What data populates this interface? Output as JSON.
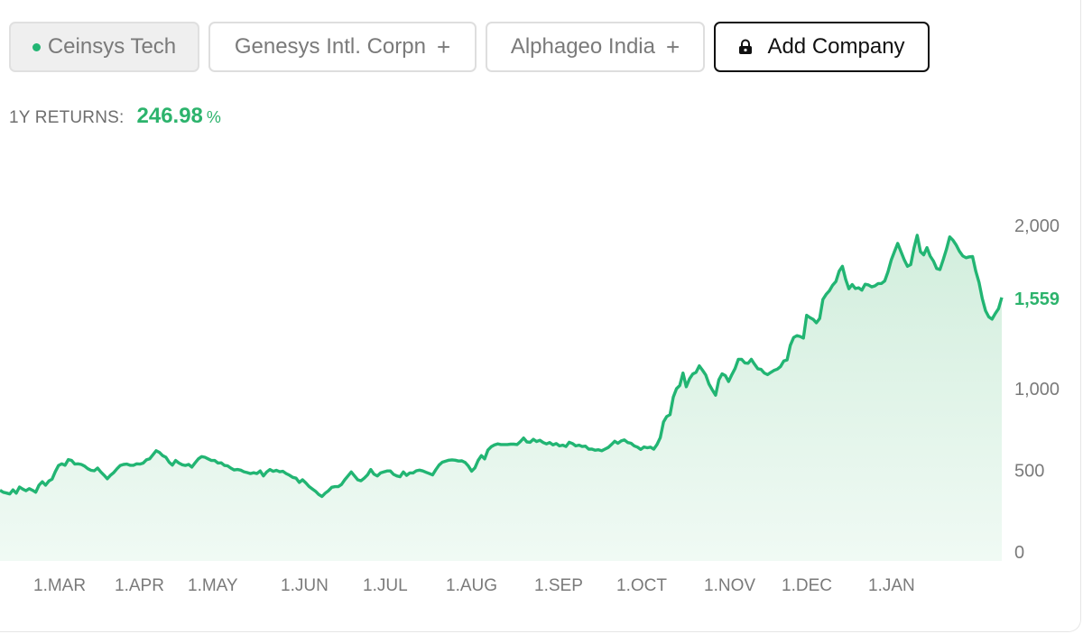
{
  "companies": [
    {
      "label": "Ceinsys Tech",
      "active": true
    },
    {
      "label": "Genesys Intl. Corpn",
      "action_icon": "plus-icon"
    },
    {
      "label": "Alphageo India",
      "action_icon": "plus-icon"
    }
  ],
  "add_company": {
    "label": "Add Company",
    "icon": "lock-icon"
  },
  "returns": {
    "label": "1Y RETURNS:",
    "value": "246.98",
    "unit": "%"
  },
  "colors": {
    "accent": "#22b573",
    "accent_text": "#2cb36c",
    "fill": "#d6f0e1"
  },
  "chart_data": {
    "type": "area",
    "series": [
      {
        "values": [
          378,
          366,
          361,
          355,
          380,
          360,
          398,
          385,
          375,
          388,
          378,
          366,
          409,
          430,
          409,
          434,
          446,
          492,
          530,
          540,
          531,
          566,
          561,
          538,
          540,
          536,
          526,
          510,
          500,
          497,
          514,
          490,
          470,
          448,
          470,
          487,
          510,
          530,
          536,
          538,
          531,
          531,
          540,
          538,
          544,
          564,
          570,
          595,
          620,
          610,
          590,
          580,
          550,
          532,
          560,
          545,
          534,
          530,
          536,
          520,
          546,
          570,
          584,
          580,
          570,
          560,
          560,
          545,
          546,
          530,
          527,
          513,
          502,
          505,
          501,
          491,
          486,
          480,
          485,
          480,
          496,
          466,
          490,
          505,
          494,
          500,
          491,
          494,
          480,
          470,
          457,
          452,
          426,
          442,
          423,
          401,
          386,
          372,
          352,
          340,
          360,
          375,
          396,
          400,
          400,
          413,
          442,
          466,
          490,
          466,
          442,
          436,
          452,
          472,
          505,
          476,
          466,
          484,
          490,
          496,
          496,
          475,
          466,
          461,
          490,
          469,
          484,
          484,
          497,
          501,
          496,
          488,
          480,
          472,
          504,
          532,
          550,
          556,
          562,
          564,
          562,
          557,
          558,
          548,
          526,
          495,
          515,
          561,
          590,
          570,
          624,
          644,
          655,
          662,
          658,
          658,
          658,
          660,
          660,
          658,
          676,
          698,
          674,
          672,
          690,
          676,
          684,
          670,
          662,
          670,
          656,
          664,
          650,
          654,
          646,
          672,
          664,
          650,
          654,
          646,
          648,
          630,
          630,
          623,
          626,
          620,
          630,
          640,
          658,
          678,
          666,
          680,
          686,
          670,
          666,
          650,
          642,
          628,
          643,
          638,
          642,
          630,
          658,
          700,
          796,
          830,
          841,
          948,
          1000,
          1020,
          1096,
          1012,
          1060,
          1090,
          1100,
          1140,
          1113,
          1084,
          1028,
          992,
          960,
          1054,
          1091,
          1080,
          1044,
          1086,
          1124,
          1180,
          1180,
          1158,
          1156,
          1180,
          1150,
          1122,
          1118,
          1096,
          1086,
          1100,
          1112,
          1120,
          1136,
          1170,
          1176,
          1266,
          1314,
          1325,
          1320,
          1310,
          1450,
          1436,
          1425,
          1404,
          1430,
          1547,
          1578,
          1600,
          1634,
          1657,
          1720,
          1750,
          1670,
          1612,
          1638,
          1614,
          1618,
          1604,
          1640,
          1636,
          1624,
          1630,
          1644,
          1645,
          1660,
          1716,
          1788,
          1840,
          1890,
          1840,
          1790,
          1750,
          1760,
          1860,
          1940,
          1840,
          1820,
          1864,
          1812,
          1782,
          1736,
          1730,
          1790,
          1854,
          1930,
          1910,
          1880,
          1842,
          1813,
          1802,
          1808,
          1810,
          1720,
          1651,
          1552,
          1478,
          1440,
          1426,
          1460,
          1490,
          1559
        ],
        "last_value": 1559
      }
    ],
    "y_ticks": [
      0,
      500,
      1000,
      2000
    ],
    "y_tick_labels": [
      "0",
      "500",
      "1,000",
      "2,000"
    ],
    "ylim": [
      0,
      2000
    ],
    "x_tick_labels": [
      "1.MAR",
      "1.APR",
      "1.MAY",
      "1.JUN",
      "1.JUL",
      "1.AUG",
      "1.SEP",
      "1.OCT",
      "1.NOV",
      "1.DEC",
      "1.JAN"
    ],
    "current_value_label": "1,559",
    "grid": false
  }
}
